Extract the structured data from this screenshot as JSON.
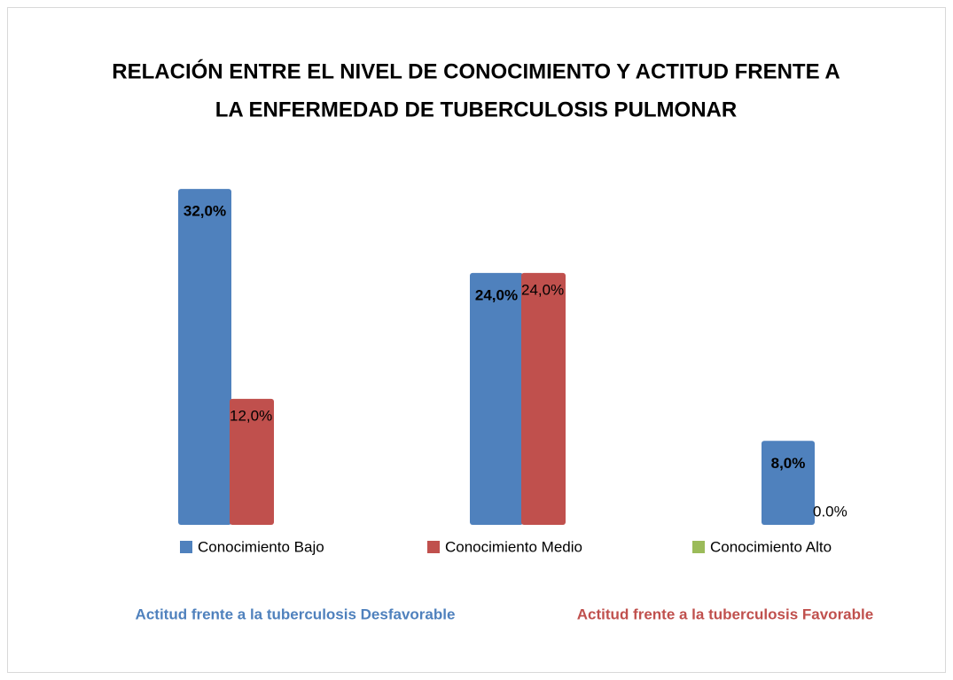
{
  "chart_data": {
    "type": "bar",
    "title": [
      "RELACIÓN ENTRE EL NIVEL DE CONOCIMIENTO Y ACTITUD FRENTE A",
      "LA ENFERMEDAD DE TUBERCULOSIS PULMONAR"
    ],
    "categories": [
      "Conocimiento Bajo",
      "Conocimiento Medio",
      "Conocimiento Alto"
    ],
    "category_colors": [
      "#4f81bd",
      "#c0504d",
      "#9bbb59"
    ],
    "series": [
      {
        "name": "Actitud frente a la tuberculosis Desfavorable",
        "color": "#4f81bd",
        "values": [
          32,
          24,
          8
        ],
        "value_labels": [
          "32,0%",
          "24,0%",
          "8,0%"
        ]
      },
      {
        "name": "Actitud frente a la tuberculosis Favorable",
        "color": "#c0504d",
        "values": [
          12,
          24,
          0
        ],
        "value_labels": [
          "12,0%",
          "24,0%",
          "0.0%"
        ]
      }
    ]
  }
}
